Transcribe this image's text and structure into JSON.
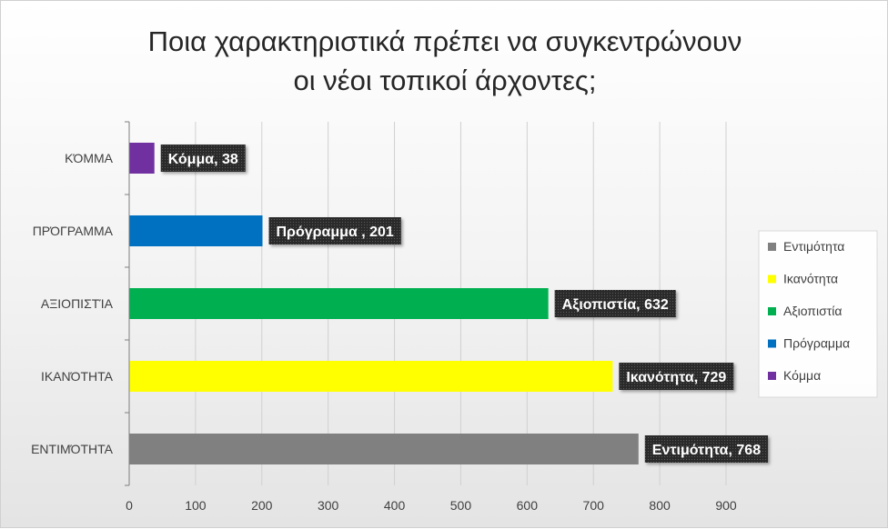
{
  "chart_data": {
    "type": "bar",
    "orientation": "horizontal",
    "title": "Ποια χαρακτηριστικά πρέπει να συγκεντρώνουν οι νέοι τοπικοί άρχοντες;",
    "title_lines": [
      "Ποια χαρακτηριστικά πρέπει να συγκεντρώνουν",
      "οι νέοι τοπικοί άρχοντες;"
    ],
    "categories": [
      "ΚΌΜΜΑ",
      "ΠΡΌΓΡΑΜΜΑ",
      "ΑΞΙΟΠΙΣΤΊΑ",
      "ΙΚΑΝΌΤΗΤΑ",
      "ΕΝΤΙΜΌΤΗΤΑ"
    ],
    "values": [
      38,
      201,
      632,
      729,
      768
    ],
    "data_labels": [
      "Κόμμα, 38",
      "Πρόγραμμα , 201",
      "Αξιοπιστία, 632",
      "Ικανότητα, 729",
      "Εντιμότητα, 768"
    ],
    "colors": [
      "#7030a0",
      "#0070c0",
      "#00b050",
      "#ffff00",
      "#808080"
    ],
    "xlim": [
      0,
      900
    ],
    "x_ticks": [
      0,
      100,
      200,
      300,
      400,
      500,
      600,
      700,
      800,
      900
    ],
    "grid": true,
    "legend_position": "right",
    "legend": [
      {
        "name": "Εντιμότητα",
        "color": "#808080"
      },
      {
        "name": "Ικανότητα",
        "color": "#ffff00"
      },
      {
        "name": "Αξιοπιστία",
        "color": "#00b050"
      },
      {
        "name": "Πρόγραμμα",
        "color": "#0070c0"
      },
      {
        "name": "Κόμμα",
        "color": "#7030a0"
      }
    ]
  }
}
